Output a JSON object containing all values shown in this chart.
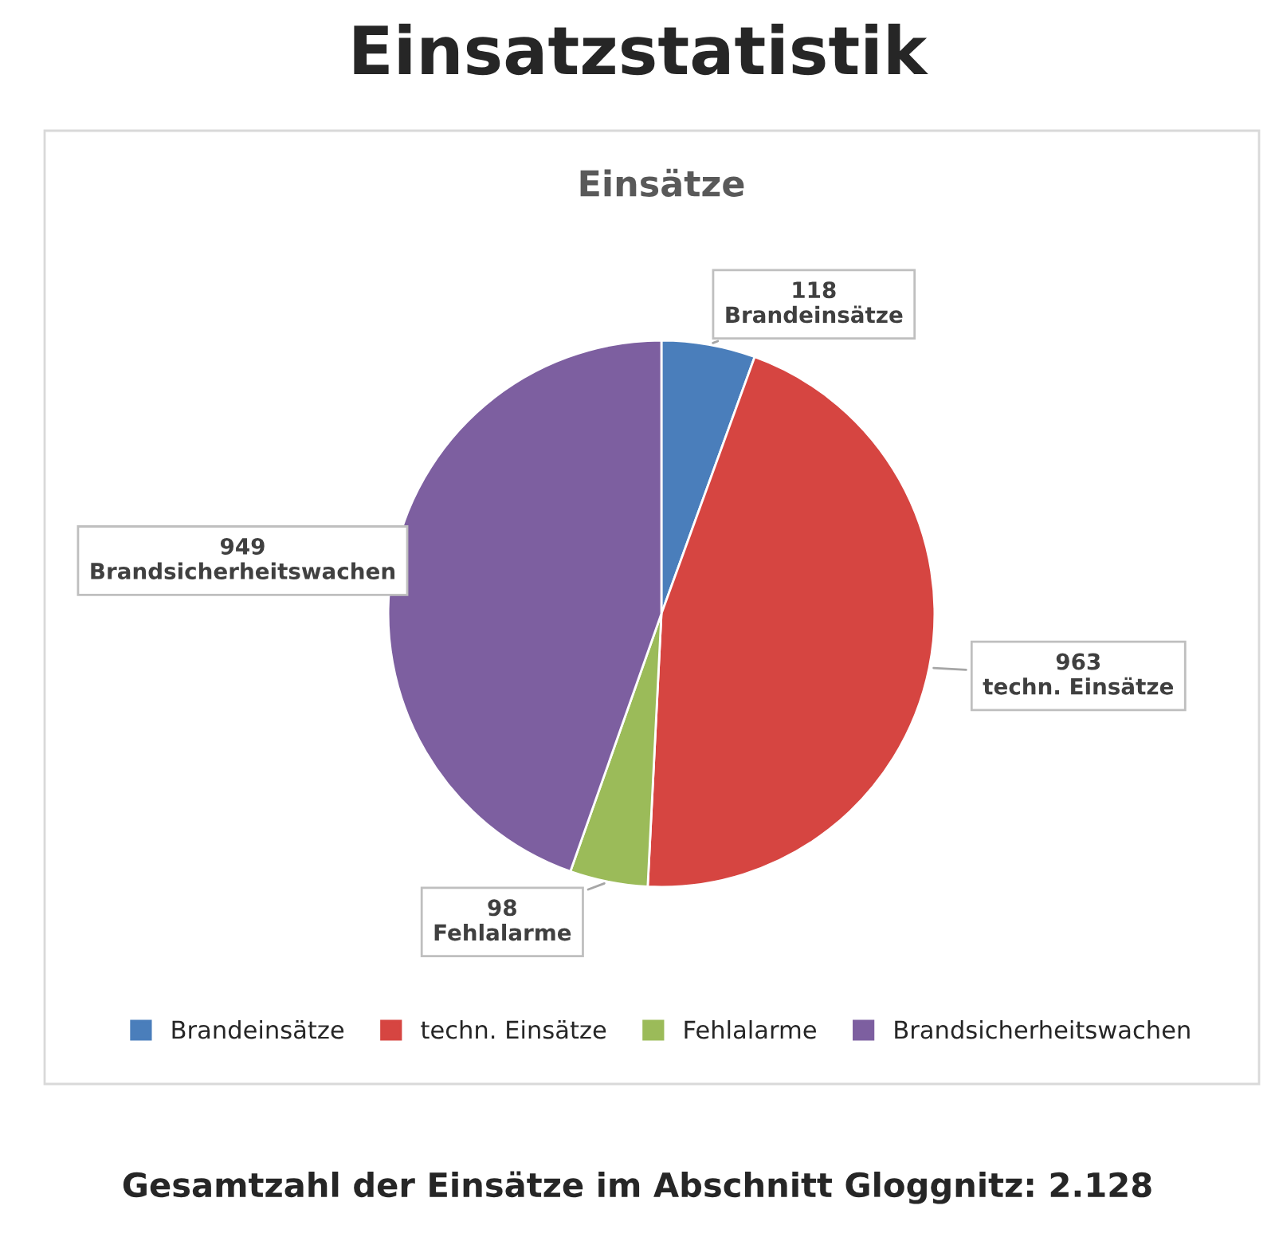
{
  "chart_data": {
    "type": "pie",
    "title": "Einsätze",
    "subtitle": "Einsatzstatistik",
    "categories": [
      "Brandeinsätze",
      "techn. Einsätze",
      "Fehlalarme",
      "Brandsicherheitswachen"
    ],
    "values": [
      118,
      963,
      98,
      949
    ],
    "colors": [
      "#4a7ebb",
      "#d64541",
      "#9bbb59",
      "#7d5fa0"
    ],
    "data_labels": true,
    "legend": "bottom",
    "annotations": [
      "Gesamtzahl der Einsätze im Abschnitt Gloggnitz: 2.128"
    ]
  }
}
